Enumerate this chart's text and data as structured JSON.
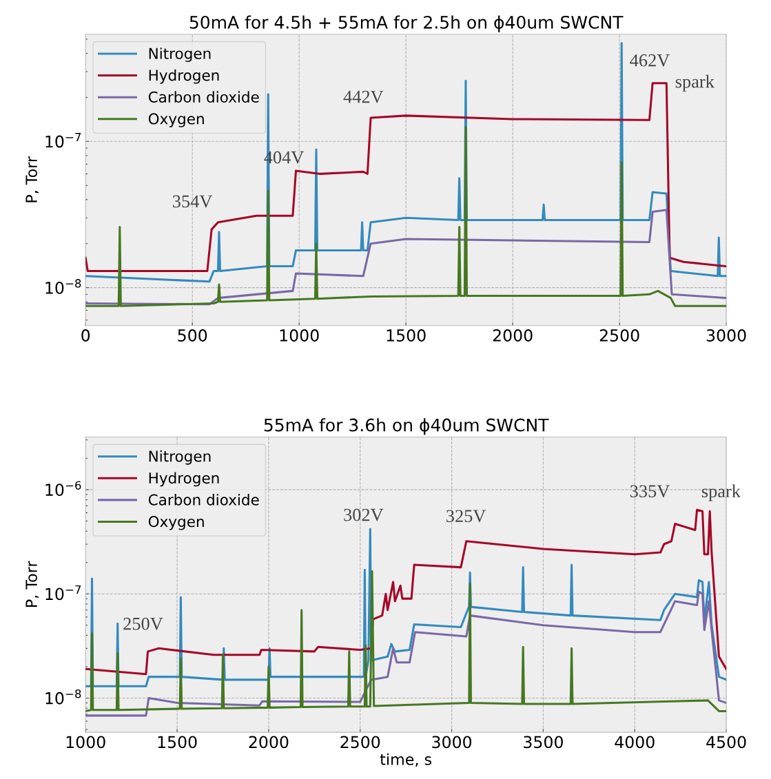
{
  "chart_data": [
    {
      "type": "line",
      "title": "50mA for 4.5h + 55mA for 2.5h on ϕ40um SWCNT",
      "ylabel": "P, Torr",
      "log": "y",
      "grid": true,
      "legend": "top left",
      "xlim": [
        0,
        3000
      ],
      "xticks": [
        0,
        500,
        1000,
        1500,
        2000,
        2500,
        3000
      ],
      "ylim": [
        5.5e-09,
        5.4e-07
      ],
      "yticks": [
        {
          "value": 1e-08,
          "label": "10$^{−8}$"
        },
        {
          "value": 1e-07,
          "label": "10$^{−7}$"
        }
      ],
      "tick_labels": "xy",
      "annotations": [
        "354V",
        "404V",
        "442V",
        "462V",
        "spark"
      ],
      "series": [
        {
          "name": "Nitrogen",
          "color": "#348abd",
          "x": [
            0,
            580,
            600,
            620,
            625,
            630,
            850,
            855,
            860,
            970,
            985,
            1075,
            1080,
            1085,
            1290,
            1295,
            1300,
            1320,
            1335,
            1500,
            1745,
            1750,
            1755,
            1775,
            1780,
            1785,
            2140,
            2145,
            2150,
            2505,
            2510,
            2515,
            2640,
            2655,
            2720,
            2740,
            2960,
            2965,
            2970,
            3000
          ],
          "values": [
            1.2e-08,
            1.1e-08,
            1.3e-08,
            1.3e-08,
            2.4e-08,
            1.3e-08,
            1.4e-08,
            2.1e-07,
            1.4e-08,
            1.4e-08,
            1.8e-08,
            1.8e-08,
            8.8e-08,
            1.8e-08,
            1.8e-08,
            2.8e-08,
            1.8e-08,
            1.8e-08,
            2.8e-08,
            3e-08,
            2.9e-08,
            5.6e-08,
            2.9e-08,
            2.9e-08,
            2.6e-07,
            2.9e-08,
            2.9e-08,
            3.7e-08,
            2.9e-08,
            2.9e-08,
            4.7e-07,
            2.9e-08,
            2.9e-08,
            4.5e-08,
            4.4e-08,
            1.3e-08,
            1.2e-08,
            2.2e-08,
            1.2e-08,
            1.2e-08
          ]
        },
        {
          "name": "Hydrogen",
          "color": "#a60628",
          "x": [
            0,
            10,
            570,
            590,
            620,
            800,
            970,
            985,
            1100,
            1300,
            1320,
            1335,
            1500,
            2000,
            2640,
            2655,
            2720,
            2735,
            2800,
            3000
          ],
          "values": [
            1.6e-08,
            1.3e-08,
            1.3e-08,
            2.5e-08,
            2.8e-08,
            3.1e-08,
            3.1e-08,
            6.3e-08,
            6e-08,
            6.2e-08,
            6e-08,
            1.45e-07,
            1.5e-07,
            1.42e-07,
            1.4e-07,
            2.5e-07,
            2.5e-07,
            1.6e-08,
            1.5e-08,
            1.4e-08
          ]
        },
        {
          "name": "Carbon dioxide",
          "color": "#7a68a6",
          "x": [
            0,
            580,
            620,
            970,
            985,
            1300,
            1335,
            1500,
            2640,
            2655,
            2720,
            2745,
            3000
          ],
          "values": [
            7.8e-09,
            7.7e-09,
            8.5e-09,
            9.5e-09,
            1.25e-08,
            1.2e-08,
            2e-08,
            2.15e-08,
            2.05e-08,
            3.3e-08,
            3.4e-08,
            9e-09,
            8.5e-09
          ]
        },
        {
          "name": "Oxygen",
          "color": "#467821",
          "x": [
            0,
            155,
            160,
            165,
            600,
            620,
            625,
            630,
            850,
            855,
            860,
            1075,
            1080,
            1085,
            1335,
            1745,
            1750,
            1755,
            1775,
            1780,
            1785,
            2505,
            2510,
            2515,
            2640,
            2680,
            2740,
            2760,
            3000
          ],
          "values": [
            7.5e-09,
            7.5e-09,
            2.6e-08,
            7.5e-09,
            7.8e-09,
            8e-09,
            1.05e-08,
            8e-09,
            8.2e-09,
            4.6e-08,
            8.2e-09,
            8.4e-09,
            2e-08,
            8.4e-09,
            8.7e-09,
            8.8e-09,
            2.6e-08,
            8.8e-09,
            8.8e-09,
            1.25e-07,
            8.8e-09,
            8.8e-09,
            7.2e-08,
            8.8e-09,
            9e-09,
            9.5e-09,
            8.5e-09,
            7.5e-09,
            7.5e-09
          ]
        }
      ]
    },
    {
      "type": "line",
      "title": "55mA for 3.6h on ϕ40um SWCNT",
      "xlabel": "time, s",
      "ylabel": "P, Torr",
      "log": "y",
      "grid": true,
      "legend": "top left",
      "xlim": [
        1000,
        4500
      ],
      "xticks": [
        1000,
        1500,
        2000,
        2500,
        3000,
        3500,
        4000,
        4500
      ],
      "ylim": [
        4.7e-09,
        3.2e-06
      ],
      "yticks": [
        {
          "value": 1e-08,
          "label": "10$^{−8}$"
        },
        {
          "value": 1e-07,
          "label": "10$^{−7}$"
        },
        {
          "value": 1e-06,
          "label": "10$^{−6}$"
        }
      ],
      "annotations": [
        "250V",
        "302V",
        "325V",
        "335V",
        "spark"
      ],
      "series": [
        {
          "name": "Nitrogen",
          "color": "#348abd",
          "x": [
            1000,
            1030,
            1035,
            1040,
            1170,
            1175,
            1180,
            1330,
            1345,
            1515,
            1520,
            1525,
            1750,
            1755,
            1760,
            2000,
            2005,
            2010,
            2520,
            2525,
            2530,
            2545,
            2555,
            2560,
            2650,
            2670,
            2690,
            2770,
            2795,
            3050,
            3095,
            3100,
            3105,
            3385,
            3390,
            3395,
            3650,
            3655,
            3660,
            4140,
            4160,
            4220,
            4340,
            4350,
            4370,
            4380,
            4405,
            4420,
            4460,
            4500
          ],
          "values": [
            1.3e-08,
            1.3e-08,
            1.4e-07,
            1.3e-08,
            1.3e-08,
            5.2e-08,
            1.3e-08,
            1.3e-08,
            1.6e-08,
            1.6e-08,
            9.3e-08,
            1.6e-08,
            1.5e-08,
            3e-08,
            1.5e-08,
            1.5e-08,
            3e-08,
            1.6e-08,
            1.6e-08,
            1.7e-07,
            1.6e-08,
            2.3e-08,
            4.2e-07,
            2.3e-08,
            2.5e-08,
            3.3e-08,
            2.8e-08,
            2.9e-08,
            5.1e-08,
            4.8e-08,
            7.6e-08,
            1.6e-07,
            7.5e-08,
            6.7e-08,
            1.8e-07,
            6.7e-08,
            6.2e-08,
            1.9e-07,
            6.2e-08,
            5.6e-08,
            7e-08,
            1e-07,
            9.3e-08,
            1.35e-07,
            1.3e-07,
            5.5e-08,
            1.3e-07,
            5e-08,
            1.6e-08,
            1.5e-08
          ]
        },
        {
          "name": "Hydrogen",
          "color": "#a60628",
          "x": [
            1000,
            1330,
            1340,
            1400,
            1700,
            1950,
            1960,
            2250,
            2270,
            2500,
            2560,
            2570,
            2620,
            2640,
            2650,
            2680,
            2690,
            2720,
            2730,
            2780,
            2795,
            3050,
            3080,
            3500,
            4000,
            4140,
            4160,
            4200,
            4220,
            4330,
            4340,
            4370,
            4380,
            4400,
            4410,
            4420,
            4460,
            4500
          ],
          "values": [
            1.9e-08,
            1.7e-08,
            2.8e-08,
            3e-08,
            2.6e-08,
            2.6e-08,
            2.9e-08,
            2.8e-08,
            3.1e-08,
            2.9e-08,
            3e-08,
            5.7e-08,
            6.2e-08,
            1e-07,
            7e-08,
            1.3e-07,
            8.5e-08,
            1.2e-07,
            9e-08,
            9e-08,
            1.9e-07,
            1.8e-07,
            3.2e-07,
            2.7e-07,
            2.4e-07,
            2.5e-07,
            3e-07,
            3.2e-07,
            4.7e-07,
            4.1e-07,
            6.4e-07,
            6.2e-07,
            2.4e-07,
            2.4e-07,
            6.2e-07,
            2.5e-07,
            2.5e-08,
            1.9e-08
          ]
        },
        {
          "name": "Carbon dioxide",
          "color": "#7a68a6",
          "x": [
            1000,
            1330,
            1345,
            1500,
            1950,
            1965,
            2500,
            2560,
            2650,
            2680,
            2700,
            2770,
            2800,
            3080,
            3100,
            3500,
            4000,
            4140,
            4220,
            4340,
            4350,
            4370,
            4380,
            4405,
            4420,
            4460,
            4500
          ],
          "values": [
            6.8e-09,
            6.8e-09,
            1e-08,
            9e-09,
            8.5e-09,
            9.3e-09,
            9.2e-09,
            1.5e-08,
            1.6e-08,
            3e-08,
            2.2e-08,
            2.2e-08,
            4.3e-08,
            3.9e-08,
            6.2e-08,
            5e-08,
            4.3e-08,
            4.3e-08,
            8.5e-08,
            7.8e-08,
            1.05e-07,
            1e-07,
            4.5e-08,
            8.5e-08,
            4.5e-08,
            9.5e-09,
            9e-09
          ]
        },
        {
          "name": "Oxygen",
          "color": "#467821",
          "x": [
            1000,
            1030,
            1035,
            1040,
            1170,
            1175,
            1180,
            1515,
            1520,
            1525,
            1745,
            1750,
            1755,
            1995,
            2000,
            2005,
            2175,
            2180,
            2185,
            2435,
            2440,
            2445,
            2525,
            2530,
            2535,
            2555,
            2565,
            2575,
            3095,
            3100,
            3105,
            3385,
            3390,
            3395,
            3650,
            3655,
            3660,
            4200,
            4400,
            4460,
            4500
          ],
          "values": [
            7.5e-09,
            7.7e-09,
            4.2e-08,
            7.7e-09,
            7.7e-09,
            2.7e-08,
            7.7e-09,
            7.9e-09,
            2.4e-08,
            7.9e-09,
            8e-09,
            2.6e-08,
            8e-09,
            8.1e-09,
            2e-08,
            8.1e-09,
            8.2e-09,
            7e-08,
            8.2e-09,
            8.3e-09,
            2.8e-08,
            8.3e-09,
            8.3e-09,
            3.2e-08,
            8.3e-09,
            8.3e-09,
            1.65e-07,
            8.4e-09,
            9e-09,
            1.25e-07,
            9e-09,
            8.8e-09,
            3.1e-08,
            8.8e-09,
            8.8e-09,
            3e-08,
            8.8e-09,
            9.3e-09,
            9.5e-09,
            7.5e-09,
            7.5e-09
          ]
        }
      ]
    }
  ]
}
